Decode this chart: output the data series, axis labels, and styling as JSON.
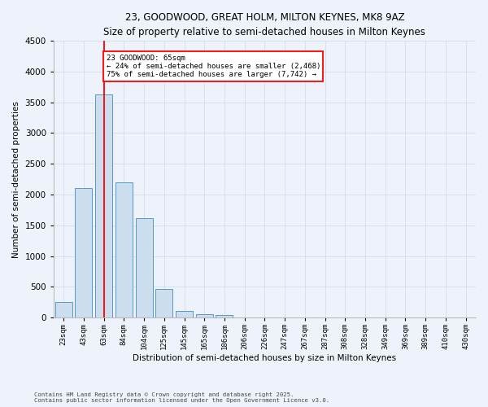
{
  "title": "23, GOODWOOD, GREAT HOLM, MILTON KEYNES, MK8 9AZ",
  "subtitle": "Size of property relative to semi-detached houses in Milton Keynes",
  "xlabel": "Distribution of semi-detached houses by size in Milton Keynes",
  "ylabel": "Number of semi-detached properties",
  "footnote1": "Contains HM Land Registry data © Crown copyright and database right 2025.",
  "footnote2": "Contains public sector information licensed under the Open Government Licence v3.0.",
  "bar_labels": [
    "23sqm",
    "43sqm",
    "63sqm",
    "84sqm",
    "104sqm",
    "125sqm",
    "145sqm",
    "165sqm",
    "186sqm",
    "206sqm",
    "226sqm",
    "247sqm",
    "267sqm",
    "287sqm",
    "308sqm",
    "328sqm",
    "349sqm",
    "369sqm",
    "389sqm",
    "410sqm",
    "430sqm"
  ],
  "bar_values": [
    250,
    2100,
    3620,
    2200,
    1620,
    460,
    110,
    60,
    45,
    0,
    0,
    0,
    0,
    0,
    0,
    0,
    0,
    0,
    0,
    0,
    0
  ],
  "bar_color": "#ccdded",
  "bar_edge_color": "#5599cc",
  "background_color": "#eef2fa",
  "grid_color": "#d0d8e8",
  "vline_x": 2,
  "vline_color": "red",
  "annotation_text": "23 GOODWOOD: 65sqm\n← 24% of semi-detached houses are smaller (2,468)\n75% of semi-detached houses are larger (7,742) →",
  "annotation_box_color": "white",
  "annotation_box_edge": "red",
  "ylim": [
    0,
    4500
  ],
  "yticks": [
    0,
    500,
    1000,
    1500,
    2000,
    2500,
    3000,
    3500,
    4000,
    4500
  ]
}
